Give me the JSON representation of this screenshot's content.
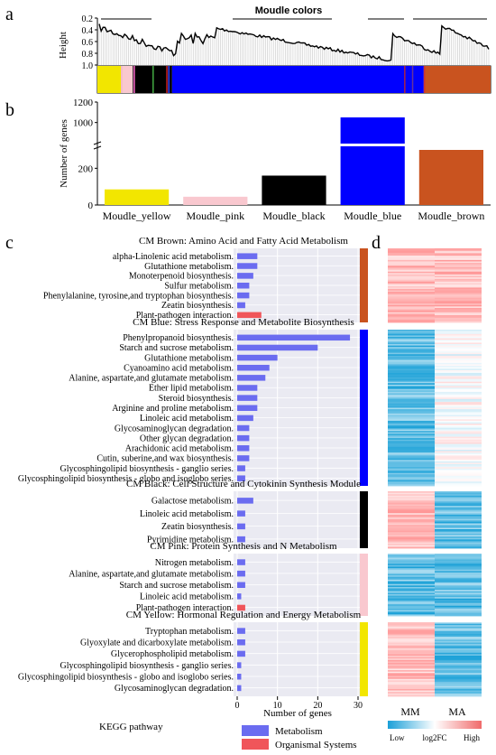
{
  "panels": {
    "a": "a",
    "b": "b",
    "c": "c",
    "d": "d"
  },
  "colors": {
    "yellow": "#f2e600",
    "pink": "#f9c8cf",
    "black": "#000000",
    "blue": "#0000ff",
    "brown": "#c9531f",
    "metabolism_bar": "#6b6cf0",
    "organismal_bar": "#f0555a",
    "panel_bg": "#eaeaf2",
    "heat_low": "#1a9fd8",
    "heat_mid": "#ffffff",
    "heat_high": "#f06b6b"
  },
  "chart_data": [
    {
      "id": "a",
      "type": "dendrogram",
      "title": "Moudle colors",
      "ylabel": "Height",
      "yticks": [
        "0.2",
        "0.4",
        "0.6",
        "0.8",
        "1.0"
      ],
      "ylim": [
        1.0,
        0.2
      ],
      "module_order": [
        "yellow",
        "pink",
        "black",
        "blue",
        "brown"
      ],
      "module_fractions": [
        0.06,
        0.03,
        0.1,
        0.64,
        0.17
      ]
    },
    {
      "id": "b",
      "type": "bar",
      "ylabel": "Number of genes",
      "yticks": [
        "0",
        "200",
        "1000",
        "1200"
      ],
      "axis_break": [
        300,
        900
      ],
      "categories": [
        "Moudle_yellow",
        "Moudle_pink",
        "Moudle_black",
        "Moudle_blue",
        "Moudle_brown"
      ],
      "values": [
        85,
        45,
        160,
        1050,
        300
      ],
      "color_keys": [
        "yellow",
        "pink",
        "black",
        "blue",
        "brown"
      ]
    },
    {
      "id": "c",
      "type": "bar",
      "orientation": "horizontal",
      "xlabel": "Number of genes",
      "xticks": [
        "0",
        "10",
        "20",
        "30"
      ],
      "xlim": [
        0,
        30
      ],
      "footer_left": "KEGG pathway",
      "legend": [
        {
          "label": "Metabolism",
          "color_key": "metabolism_bar"
        },
        {
          "label": "Organismal Systems",
          "color_key": "organismal_bar"
        }
      ],
      "groups": [
        {
          "title": "CM Brown: Amino Acid and Fatty Acid Metabolism",
          "color_key": "brown",
          "terms": [
            {
              "label": "alpha-Linolenic acid metabolism.",
              "value": 5,
              "cls": "metabolism_bar"
            },
            {
              "label": "Glutathione metabolism.",
              "value": 5,
              "cls": "metabolism_bar"
            },
            {
              "label": "Monoterpenoid biosynthesis.",
              "value": 4,
              "cls": "metabolism_bar"
            },
            {
              "label": "Sulfur metabolism.",
              "value": 3,
              "cls": "metabolism_bar"
            },
            {
              "label": "Phenylalanine, tyrosine,and tryptophan biosynthesis.",
              "value": 3,
              "cls": "metabolism_bar"
            },
            {
              "label": "Zeatin biosynthesis.",
              "value": 2,
              "cls": "metabolism_bar"
            },
            {
              "label": "Plant-pathogen interaction.",
              "value": 6,
              "cls": "organismal_bar"
            }
          ]
        },
        {
          "title": "CM Blue: Stress Response and Metabolite Biosynthesis",
          "color_key": "blue",
          "terms": [
            {
              "label": "Phenylpropanoid biosynthesis.",
              "value": 28,
              "cls": "metabolism_bar"
            },
            {
              "label": "Starch and sucrose metabolism.",
              "value": 20,
              "cls": "metabolism_bar"
            },
            {
              "label": "Glutathione metabolism.",
              "value": 10,
              "cls": "metabolism_bar"
            },
            {
              "label": "Cyanoamino acid metabolism.",
              "value": 8,
              "cls": "metabolism_bar"
            },
            {
              "label": "Alanine, aspartate,and glutamate metabolism.",
              "value": 7,
              "cls": "metabolism_bar"
            },
            {
              "label": "Ether lipid metabolism.",
              "value": 5,
              "cls": "metabolism_bar"
            },
            {
              "label": "Steroid biosynthesis.",
              "value": 5,
              "cls": "metabolism_bar"
            },
            {
              "label": "Arginine and proline metabolism.",
              "value": 5,
              "cls": "metabolism_bar"
            },
            {
              "label": "Linoleic acid metabolism.",
              "value": 4,
              "cls": "metabolism_bar"
            },
            {
              "label": "Glycosaminoglycan degradation.",
              "value": 3,
              "cls": "metabolism_bar"
            },
            {
              "label": "Other glycan degradation.",
              "value": 3,
              "cls": "metabolism_bar"
            },
            {
              "label": "Arachidonic acid metabolism.",
              "value": 3,
              "cls": "metabolism_bar"
            },
            {
              "label": "Cutin, suberine,and wax biosynthesis.",
              "value": 3,
              "cls": "metabolism_bar"
            },
            {
              "label": "Glycosphingolipid biosynthesis - ganglio series.",
              "value": 2,
              "cls": "metabolism_bar"
            },
            {
              "label": "Glycosphingolipid biosynthesis - globo and isoglobo series.",
              "value": 2,
              "cls": "metabolism_bar"
            }
          ]
        },
        {
          "title": "CM Black: Cell Structure and Cytokinin Synthesis Module",
          "color_key": "black",
          "terms": [
            {
              "label": "Galactose metabolism.",
              "value": 4,
              "cls": "metabolism_bar"
            },
            {
              "label": "Linoleic acid metabolism.",
              "value": 2,
              "cls": "metabolism_bar"
            },
            {
              "label": "Zeatin biosynthesis.",
              "value": 2,
              "cls": "metabolism_bar"
            },
            {
              "label": "Pyrimidine metabolism.",
              "value": 2,
              "cls": "metabolism_bar"
            }
          ]
        },
        {
          "title": "CM Pink: Protein Synthesis and N Metabolism",
          "color_key": "pink",
          "terms": [
            {
              "label": "Nitrogen metabolism.",
              "value": 2,
              "cls": "metabolism_bar"
            },
            {
              "label": "Alanine, aspartate,and glutamate metabolism.",
              "value": 2,
              "cls": "metabolism_bar"
            },
            {
              "label": "Starch and sucrose metabolism.",
              "value": 2,
              "cls": "metabolism_bar"
            },
            {
              "label": "Linoleic acid metabolism.",
              "value": 1,
              "cls": "metabolism_bar"
            },
            {
              "label": "Plant-pathogen interaction.",
              "value": 2,
              "cls": "organismal_bar"
            }
          ]
        },
        {
          "title": "CM Yellow: Hormonal Regulation and Energy Metabolism",
          "color_key": "yellow",
          "terms": [
            {
              "label": "Tryptophan metabolism.",
              "value": 2,
              "cls": "metabolism_bar"
            },
            {
              "label": "Glyoxylate and dicarboxylate metabolism.",
              "value": 2,
              "cls": "metabolism_bar"
            },
            {
              "label": "Glycerophospholipid metabolism.",
              "value": 2,
              "cls": "metabolism_bar"
            },
            {
              "label": "Glycosphingolipid biosynthesis - ganglio series.",
              "value": 1,
              "cls": "metabolism_bar"
            },
            {
              "label": "Glycosphingolipid biosynthesis - globo and isoglobo series.",
              "value": 1,
              "cls": "metabolism_bar"
            },
            {
              "label": "Glycosaminoglycan degradation.",
              "value": 1,
              "cls": "metabolism_bar"
            }
          ]
        }
      ]
    },
    {
      "id": "d",
      "type": "heatmap",
      "columns": [
        "MM",
        "MA"
      ],
      "colorbar": {
        "low": "Low",
        "mid": "log2FC",
        "high": "High"
      },
      "group_pattern": [
        {
          "module": "brown",
          "MM": "high",
          "MA": "high"
        },
        {
          "module": "blue",
          "MM": "low",
          "MA": "mixed"
        },
        {
          "module": "black",
          "MM": "high",
          "MA": "low"
        },
        {
          "module": "pink",
          "MM": "low",
          "MA": "low"
        },
        {
          "module": "yellow",
          "MM": "high",
          "MA": "low"
        }
      ]
    }
  ]
}
